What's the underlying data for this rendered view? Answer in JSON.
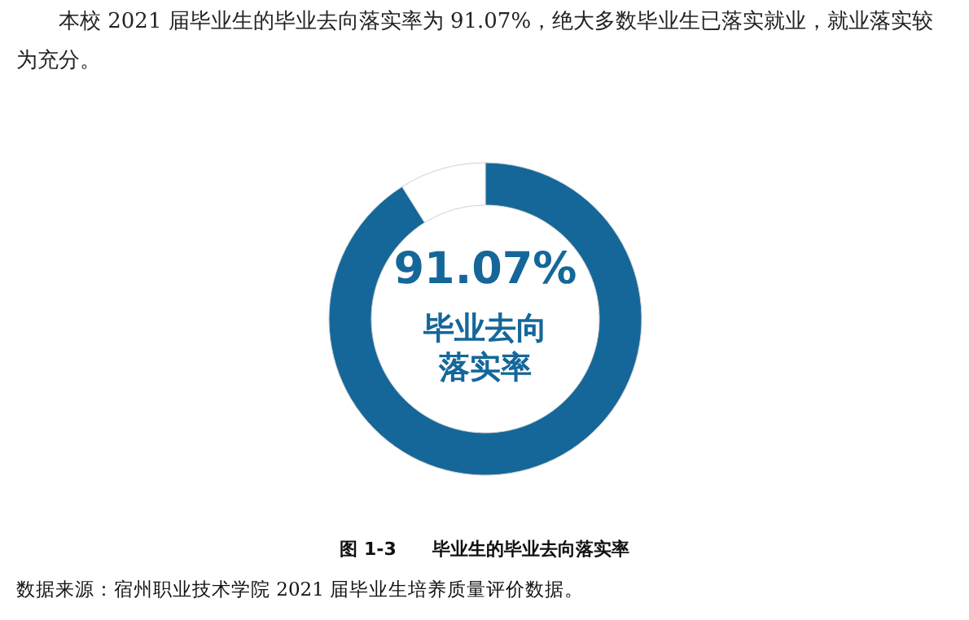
{
  "chart_data": {
    "type": "donut",
    "title": "图 1-3　　毕业生的毕业去向落实率",
    "subtitle": "本校 2021 届毕业生的毕业去向落实率为 91.07%，绝大多数毕业生已落实就业，就业落实较为充分。",
    "categories": [
      "毕业去向落实率",
      null
    ],
    "values": [
      91.07,
      8.93
    ],
    "colors": [
      "#15679a",
      "#ffffff"
    ],
    "value_labels": [
      "91.07%",
      null
    ],
    "annotations": [
      "数据来源：宿州职业技术学院 2021 届毕业生培养质量评价数据。"
    ]
  }
}
